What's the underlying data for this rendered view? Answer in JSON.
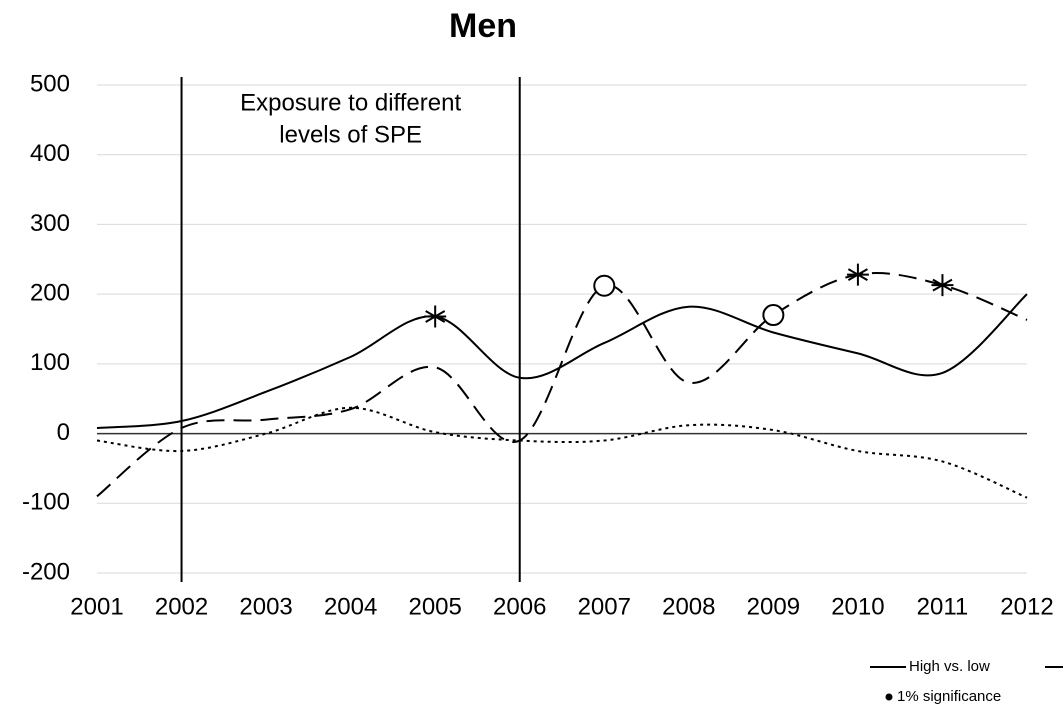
{
  "chart_data": {
    "type": "line",
    "title": "Men",
    "annotation": [
      "Exposure to different",
      "levels of SPE"
    ],
    "vlines": [
      2002,
      2006
    ],
    "x": [
      2001,
      2002,
      2003,
      2004,
      2005,
      2006,
      2007,
      2008,
      2009,
      2010,
      2011,
      2012
    ],
    "xlim": [
      2001,
      2012
    ],
    "xticks": [
      2001,
      2002,
      2003,
      2004,
      2005,
      2006,
      2007,
      2008,
      2009,
      2010,
      2011,
      2012
    ],
    "ylim": [
      -200,
      500
    ],
    "yticks": [
      -200,
      -100,
      0,
      100,
      200,
      300,
      400,
      500
    ],
    "grid": true,
    "smooth": true,
    "series": [
      {
        "name": "High vs. low",
        "color": "#000000",
        "dash": "solid",
        "values": [
          8,
          18,
          60,
          110,
          168,
          80,
          130,
          182,
          145,
          115,
          87,
          200
        ],
        "markers": [
          null,
          null,
          null,
          null,
          "star",
          null,
          null,
          null,
          null,
          null,
          null,
          null
        ]
      },
      {
        "color": "#000000",
        "dash": "dashed",
        "values": [
          -90,
          8,
          20,
          35,
          95,
          -10,
          212,
          73,
          170,
          228,
          213,
          163
        ],
        "markers": [
          null,
          null,
          null,
          null,
          null,
          null,
          "circle",
          null,
          "circle",
          "star",
          "star",
          null
        ]
      },
      {
        "color": "#000000",
        "dash": "dotted",
        "values": [
          -10,
          -25,
          0,
          37,
          2,
          -10,
          -10,
          12,
          5,
          -25,
          -40,
          -92
        ],
        "markers": [
          null,
          null,
          null,
          null,
          null,
          null,
          null,
          null,
          null,
          null,
          null,
          null
        ]
      }
    ],
    "significance_legend": "1% significance"
  }
}
